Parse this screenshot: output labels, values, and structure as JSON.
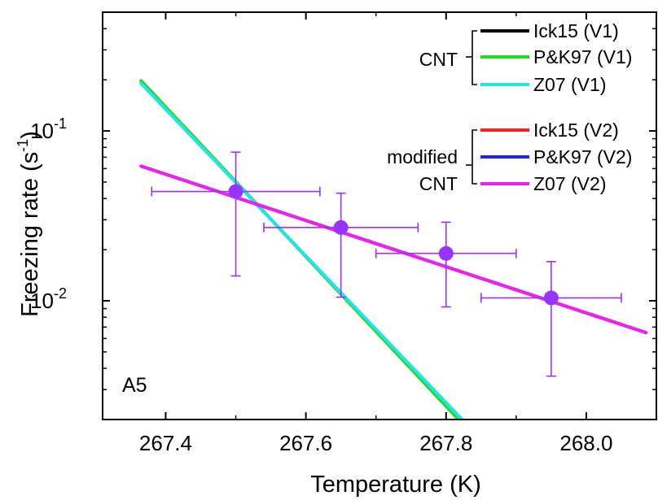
{
  "chart_data": {
    "type": "scatter",
    "panel_label": "A5",
    "xlabel": "Temperature (K)",
    "ylabel_parts": {
      "main": "Freezing rate (s",
      "sup": "-1",
      "end": ")"
    },
    "xlim": [
      267.31,
      268.1
    ],
    "ylim": [
      0.002,
      0.5
    ],
    "yscale": "log",
    "xticks": [
      267.4,
      267.6,
      267.8,
      268.0
    ],
    "xtick_labels": [
      "267.4",
      "267.6",
      "267.8",
      "268.0"
    ],
    "yticks": [
      {
        "value": 0.1,
        "base": "10",
        "exp": "-1"
      },
      {
        "value": 0.01,
        "base": "10",
        "exp": "-2"
      }
    ],
    "points": [
      {
        "x": 267.5,
        "y": 0.044,
        "xerr": [
          267.38,
          267.62
        ],
        "yerr": [
          0.014,
          0.075
        ]
      },
      {
        "x": 267.65,
        "y": 0.027,
        "xerr": [
          267.54,
          267.76
        ],
        "yerr": [
          0.0105,
          0.043
        ]
      },
      {
        "x": 267.8,
        "y": 0.019,
        "xerr": [
          267.7,
          267.9
        ],
        "yerr": [
          0.0092,
          0.029
        ]
      },
      {
        "x": 267.95,
        "y": 0.0104,
        "xerr": [
          267.85,
          268.05
        ],
        "yerr": [
          0.0036,
          0.017
        ]
      }
    ],
    "series": [
      {
        "name": "Ick15 (V1)",
        "group": "CNT",
        "color": "#000000",
        "x": [
          267.365,
          267.818
        ],
        "y": [
          0.197,
          0.002
        ]
      },
      {
        "name": "P&K97 (V1)",
        "group": "CNT",
        "color": "#22dd22",
        "x": [
          267.365,
          267.818
        ],
        "y": [
          0.197,
          0.002
        ]
      },
      {
        "name": "Z07 (V1)",
        "group": "CNT",
        "color": "#22e5e5",
        "x": [
          267.365,
          267.823
        ],
        "y": [
          0.19,
          0.002
        ]
      },
      {
        "name": "Ick15 (V2)",
        "group": "modified CNT",
        "color": "#ff2020",
        "x": [
          267.365,
          268.085
        ],
        "y": [
          0.062,
          0.0065
        ]
      },
      {
        "name": "P&K97 (V2)",
        "group": "modified CNT",
        "color": "#2020ff",
        "x": [
          267.365,
          268.085
        ],
        "y": [
          0.062,
          0.0065
        ]
      },
      {
        "name": "Z07 (V2)",
        "group": "modified CNT",
        "color": "#ee22ee",
        "x": [
          267.365,
          268.085
        ],
        "y": [
          0.062,
          0.0065
        ]
      }
    ],
    "legend_groups": [
      {
        "label_lines": [
          "CNT"
        ],
        "series": [
          "Ick15 (V1)",
          "P&K97 (V1)",
          "Z07 (V1)"
        ]
      },
      {
        "label_lines": [
          "modified",
          "CNT"
        ],
        "series": [
          "Ick15 (V2)",
          "P&K97 (V2)",
          "Z07 (V2)"
        ]
      }
    ],
    "legend_position": "top-right",
    "marker_color": "#9933ff",
    "grid": false
  }
}
